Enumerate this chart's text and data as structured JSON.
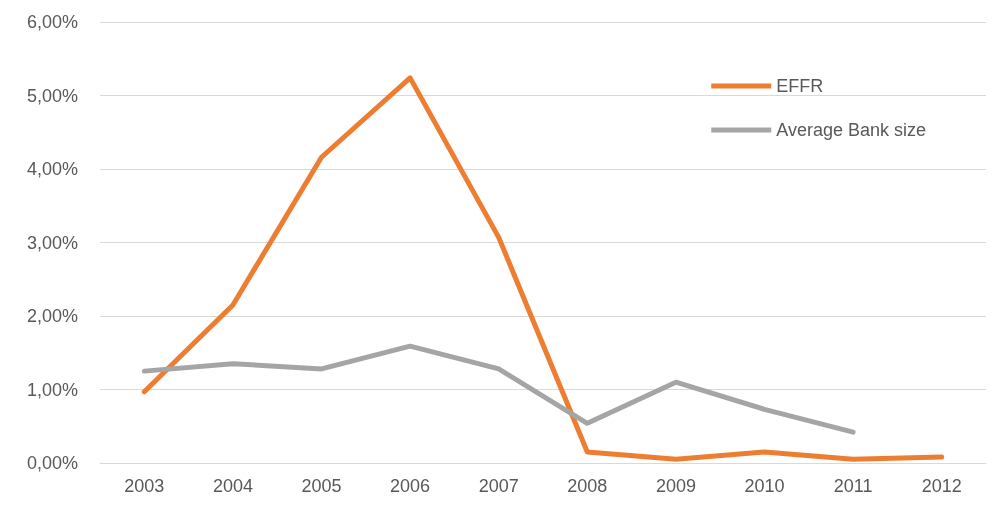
{
  "chart_data": {
    "type": "line",
    "categories": [
      "2003",
      "2004",
      "2005",
      "2006",
      "2007",
      "2008",
      "2009",
      "2010",
      "2011",
      "2012"
    ],
    "series": [
      {
        "name": "EFFR",
        "color": "#ed7d31",
        "values": [
          0.97,
          2.15,
          4.16,
          5.24,
          3.07,
          0.15,
          0.05,
          0.15,
          0.05,
          0.08
        ]
      },
      {
        "name": "Average Bank size",
        "color": "#a5a5a5",
        "values": [
          1.25,
          1.35,
          1.28,
          1.59,
          1.28,
          0.54,
          1.1,
          0.73,
          0.42,
          null
        ]
      }
    ],
    "ylim": [
      0,
      6
    ],
    "yticks": [
      {
        "value": 0,
        "label": "0,00%"
      },
      {
        "value": 1,
        "label": "1,00%"
      },
      {
        "value": 2,
        "label": "2,00%"
      },
      {
        "value": 3,
        "label": "3,00%"
      },
      {
        "value": 4,
        "label": "4,00%"
      },
      {
        "value": 5,
        "label": "5,00%"
      },
      {
        "value": 6,
        "label": "6,00%"
      }
    ],
    "grid": "y",
    "legend": "top right",
    "marker": "none",
    "line_style": "solid"
  }
}
